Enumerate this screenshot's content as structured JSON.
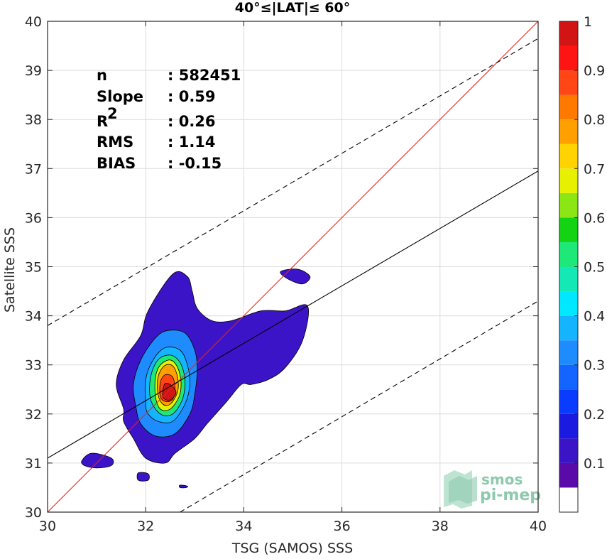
{
  "chart_data": {
    "type": "heatmap",
    "title": "40°≤|LAT|≤ 60°",
    "xlabel": "TSG (SAMOS) SSS",
    "ylabel": "Satellite SSS",
    "xlim": [
      30,
      40
    ],
    "ylim": [
      30,
      40
    ],
    "xticks": [
      "30",
      "32",
      "34",
      "36",
      "38",
      "40"
    ],
    "yticks": [
      "30",
      "31",
      "32",
      "33",
      "34",
      "35",
      "36",
      "37",
      "38",
      "39",
      "40"
    ],
    "grid": true,
    "stats": [
      {
        "label": "n",
        "value": ": 582451"
      },
      {
        "label": "Slope",
        "value": ": 0.59"
      },
      {
        "label": "R",
        "sup": "2",
        "value": ": 0.26"
      },
      {
        "label": "RMS",
        "value": ": 1.14"
      },
      {
        "label": "BIAS",
        "value": ": -0.15"
      }
    ],
    "lines": {
      "one_to_one": {
        "x": [
          30,
          40
        ],
        "y": [
          30,
          40
        ],
        "color": "#e8221c"
      },
      "regression": {
        "x": [
          30,
          40
        ],
        "y": [
          31.1,
          36.95
        ],
        "color": "#000000"
      },
      "upper_bound": {
        "x": [
          30,
          40
        ],
        "y": [
          33.8,
          39.65
        ],
        "color": "#000000",
        "style": "dashed"
      },
      "lower_bound": {
        "x": [
          32.7,
          40
        ],
        "y": [
          30,
          34.3
        ],
        "color": "#000000",
        "style": "dashed"
      }
    },
    "colorbar": {
      "ticks": [
        "0.1",
        "0.2",
        "0.3",
        "0.4",
        "0.5",
        "0.6",
        "0.7",
        "0.8",
        "0.9",
        "1"
      ],
      "tick_values": [
        0.1,
        0.2,
        0.3,
        0.4,
        0.5,
        0.6,
        0.7,
        0.8,
        0.9,
        1.0
      ],
      "levels": [
        0,
        0.05,
        0.1,
        0.15,
        0.2,
        0.25,
        0.3,
        0.35,
        0.4,
        0.45,
        0.5,
        0.55,
        0.6,
        0.65,
        0.7,
        0.75,
        0.8,
        0.85,
        0.9,
        0.95,
        1.0
      ],
      "colors": [
        "#ffffff",
        "#5a0aa8",
        "#3c14c8",
        "#1a1ae0",
        "#0a3cff",
        "#1464ff",
        "#1e8cff",
        "#14b4ff",
        "#00e8ff",
        "#14e8b4",
        "#1ee878",
        "#14d214",
        "#8ce614",
        "#e6f000",
        "#ffd200",
        "#ffa000",
        "#ff7800",
        "#ff4614",
        "#ff1414",
        "#d21414",
        "#8c0000"
      ]
    },
    "contours": [
      {
        "level": 0.05,
        "color": "#3c14c8",
        "points": [
          [
            30.7,
            31.05
          ],
          [
            30.9,
            31.2
          ],
          [
            31.3,
            31.1
          ],
          [
            31.3,
            30.95
          ],
          [
            31.0,
            30.9
          ],
          [
            30.75,
            30.95
          ]
        ]
      },
      {
        "level": 0.05,
        "color": "#3c14c8",
        "points": [
          [
            31.85,
            30.8
          ],
          [
            32.05,
            30.78
          ],
          [
            32.05,
            30.65
          ],
          [
            31.85,
            30.65
          ]
        ]
      },
      {
        "level": 0.05,
        "color": "#3c14c8",
        "points": [
          [
            32.7,
            30.55
          ],
          [
            32.85,
            30.53
          ],
          [
            32.82,
            30.5
          ],
          [
            32.7,
            30.5
          ]
        ]
      },
      {
        "level": 0.05,
        "color": "#3c14c8",
        "points": [
          [
            34.75,
            34.9
          ],
          [
            35.1,
            34.95
          ],
          [
            35.35,
            34.8
          ],
          [
            35.2,
            34.65
          ],
          [
            34.9,
            34.75
          ]
        ]
      },
      {
        "level": 0.05,
        "color": "#3c14c8",
        "points": [
          [
            31.55,
            32.1
          ],
          [
            31.4,
            32.6
          ],
          [
            31.55,
            33.1
          ],
          [
            31.9,
            33.6
          ],
          [
            32.05,
            34.1
          ],
          [
            32.55,
            34.85
          ],
          [
            32.85,
            34.8
          ],
          [
            32.95,
            34.5
          ],
          [
            33.05,
            34.15
          ],
          [
            33.35,
            33.9
          ],
          [
            33.75,
            33.9
          ],
          [
            34.35,
            34.1
          ],
          [
            34.85,
            34.1
          ],
          [
            35.3,
            34.2
          ],
          [
            35.2,
            33.5
          ],
          [
            34.85,
            32.95
          ],
          [
            34.5,
            32.7
          ],
          [
            34.15,
            32.6
          ],
          [
            33.95,
            32.6
          ],
          [
            33.65,
            32.25
          ],
          [
            33.25,
            31.8
          ],
          [
            33.0,
            31.5
          ],
          [
            32.6,
            31.2
          ],
          [
            32.4,
            31.0
          ],
          [
            32.0,
            31.1
          ],
          [
            31.75,
            31.5
          ],
          [
            31.55,
            31.85
          ]
        ]
      },
      {
        "level": 0.15,
        "color": "#1e8cff",
        "points": [
          [
            31.8,
            32.15
          ],
          [
            31.75,
            32.6
          ],
          [
            31.9,
            33.1
          ],
          [
            32.2,
            33.55
          ],
          [
            32.45,
            33.7
          ],
          [
            32.8,
            33.65
          ],
          [
            33.0,
            33.3
          ],
          [
            33.05,
            32.9
          ],
          [
            33.0,
            32.4
          ],
          [
            32.9,
            32.0
          ],
          [
            32.6,
            31.6
          ],
          [
            32.2,
            31.55
          ],
          [
            31.9,
            31.8
          ]
        ]
      },
      {
        "level": 0.3,
        "color": "#14b4ff",
        "points": [
          [
            32.0,
            32.2
          ],
          [
            32.0,
            32.7
          ],
          [
            32.15,
            33.1
          ],
          [
            32.4,
            33.35
          ],
          [
            32.7,
            33.3
          ],
          [
            32.85,
            33.0
          ],
          [
            32.9,
            32.6
          ],
          [
            32.8,
            32.2
          ],
          [
            32.55,
            31.85
          ],
          [
            32.25,
            31.85
          ],
          [
            32.05,
            32.0
          ]
        ]
      },
      {
        "level": 0.45,
        "color": "#1ee878",
        "points": [
          [
            32.1,
            32.3
          ],
          [
            32.1,
            32.75
          ],
          [
            32.25,
            33.1
          ],
          [
            32.5,
            33.2
          ],
          [
            32.7,
            33.05
          ],
          [
            32.8,
            32.7
          ],
          [
            32.75,
            32.3
          ],
          [
            32.55,
            32.0
          ],
          [
            32.3,
            32.0
          ]
        ]
      },
      {
        "level": 0.6,
        "color": "#e6f000",
        "points": [
          [
            32.2,
            32.35
          ],
          [
            32.2,
            32.75
          ],
          [
            32.3,
            33.0
          ],
          [
            32.5,
            33.1
          ],
          [
            32.65,
            32.95
          ],
          [
            32.72,
            32.65
          ],
          [
            32.68,
            32.35
          ],
          [
            32.5,
            32.1
          ],
          [
            32.3,
            32.1
          ]
        ]
      },
      {
        "level": 0.7,
        "color": "#ffa000",
        "points": [
          [
            32.25,
            32.4
          ],
          [
            32.25,
            32.75
          ],
          [
            32.38,
            32.98
          ],
          [
            32.55,
            32.98
          ],
          [
            32.65,
            32.75
          ],
          [
            32.65,
            32.45
          ],
          [
            32.5,
            32.2
          ],
          [
            32.35,
            32.2
          ]
        ]
      },
      {
        "level": 0.8,
        "color": "#ff4614",
        "points": [
          [
            32.3,
            32.35
          ],
          [
            32.3,
            32.65
          ],
          [
            32.4,
            32.8
          ],
          [
            32.55,
            32.75
          ],
          [
            32.6,
            32.5
          ],
          [
            32.55,
            32.3
          ],
          [
            32.42,
            32.25
          ]
        ]
      },
      {
        "level": 0.9,
        "color": "#d21414",
        "points": [
          [
            32.35,
            32.35
          ],
          [
            32.38,
            32.6
          ],
          [
            32.5,
            32.6
          ],
          [
            32.62,
            32.45
          ],
          [
            32.55,
            32.32
          ],
          [
            32.45,
            32.28
          ]
        ]
      }
    ],
    "watermark": {
      "line1": "smos",
      "line2": "pi-mep"
    }
  }
}
